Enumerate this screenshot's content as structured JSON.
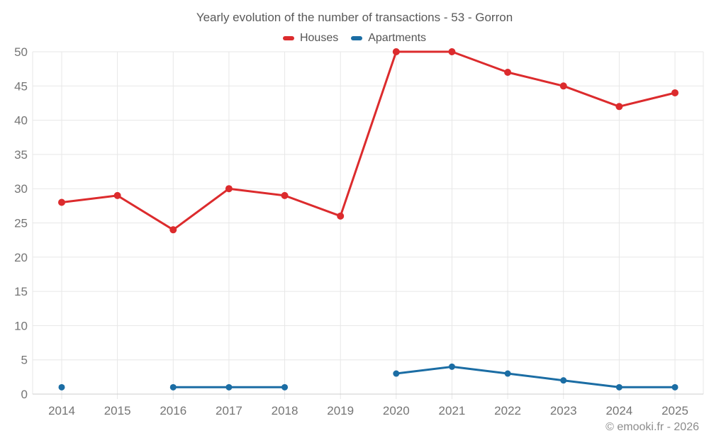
{
  "title": "Yearly evolution of the number of transactions - 53 - Gorron",
  "legend": [
    {
      "label": "Houses",
      "color": "#dc2b2d"
    },
    {
      "label": "Apartments",
      "color": "#1b6da4"
    }
  ],
  "watermark": "© emooki.fr - 2026",
  "colors": {
    "houses": "#dc2b2d",
    "apartments": "#1b6da4",
    "grid": "#e7e7e7",
    "axis_line": "#cccccc",
    "tick_text": "#757575",
    "title_text": "#595959",
    "legend_text": "#555555",
    "watermark_text": "#8c8c8c"
  },
  "chart_data": {
    "type": "line",
    "title": "Yearly evolution of the number of transactions - 53 - Gorron",
    "categories": [
      "2014",
      "2015",
      "2016",
      "2017",
      "2018",
      "2019",
      "2020",
      "2021",
      "2022",
      "2023",
      "2024",
      "2025"
    ],
    "series": [
      {
        "name": "Houses",
        "color": "#dc2b2d",
        "values": [
          28,
          29,
          24,
          30,
          29,
          26,
          50,
          50,
          47,
          45,
          42,
          44
        ]
      },
      {
        "name": "Apartments",
        "color": "#1b6da4",
        "values": [
          1,
          null,
          1,
          1,
          1,
          null,
          3,
          4,
          3,
          2,
          1,
          1
        ]
      }
    ],
    "xlabel": "",
    "ylabel": "",
    "ylim": [
      0,
      50
    ],
    "ytick_step": 5,
    "yticks": [
      0,
      5,
      10,
      15,
      20,
      25,
      30,
      35,
      40,
      45,
      50
    ],
    "grid": true,
    "legend_position": "top",
    "markers": true,
    "missing_values_note": "Apartments series has gaps at 2015 and 2019"
  }
}
